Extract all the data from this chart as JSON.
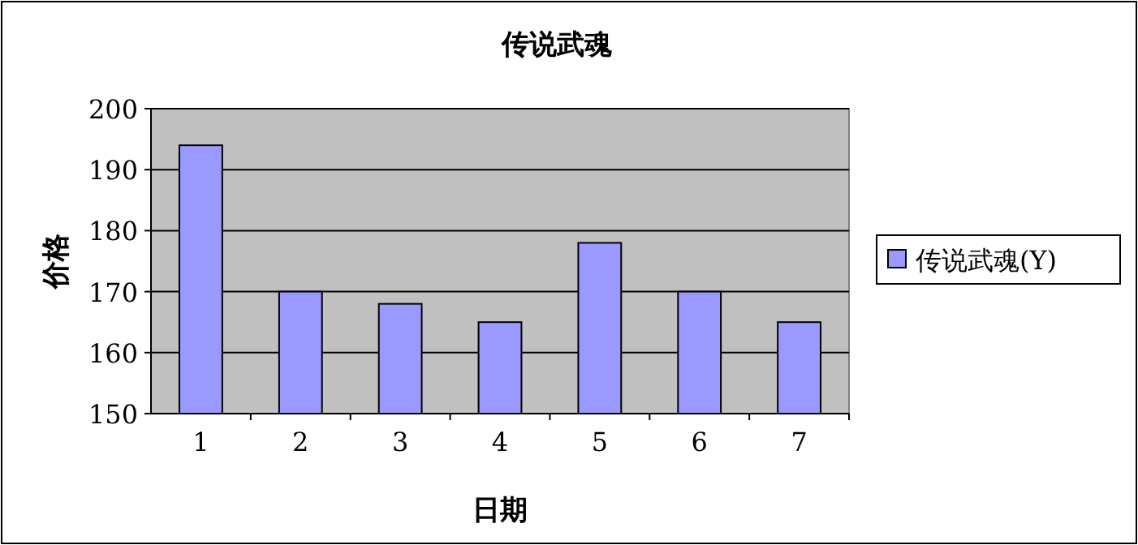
{
  "chart_data": {
    "type": "bar",
    "title": "传说武魂",
    "xlabel": "日期",
    "ylabel": "价格",
    "categories": [
      "1",
      "2",
      "3",
      "4",
      "5",
      "6",
      "7"
    ],
    "series": [
      {
        "name": "传说武魂(Y)",
        "color": "#9999ff",
        "values": [
          194,
          170,
          168,
          165,
          178,
          170,
          165
        ]
      }
    ],
    "ylim": [
      150,
      200
    ],
    "yticks": [
      150,
      160,
      170,
      180,
      190,
      200
    ],
    "grid": "y",
    "legend": "right"
  }
}
